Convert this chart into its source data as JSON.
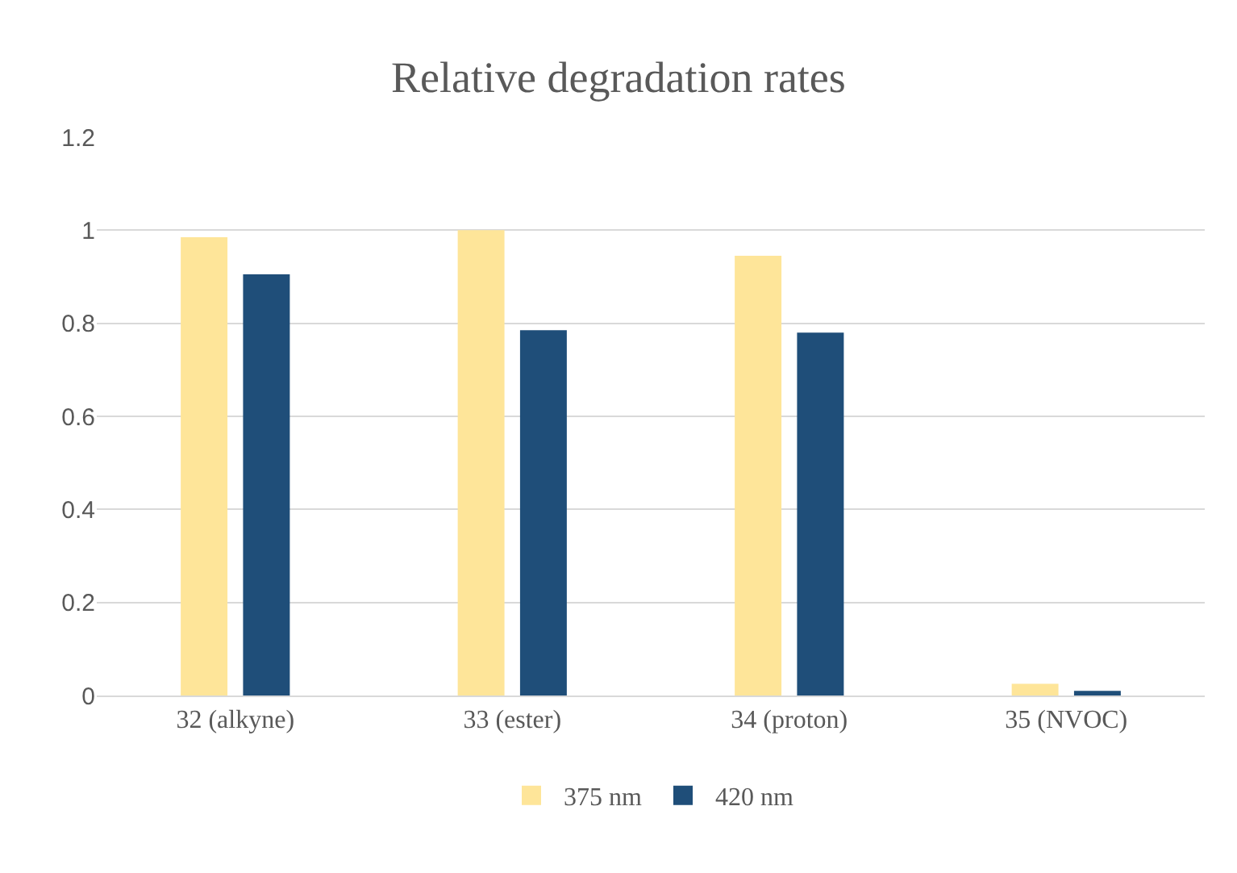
{
  "chart_data": {
    "type": "bar",
    "title": "Relative degradation rates",
    "categories": [
      "32 (alkyne)",
      "33 (ester)",
      "34 (proton)",
      "35 (NVOC)"
    ],
    "series": [
      {
        "name": "375 nm",
        "color": "#fee599",
        "values": [
          0.985,
          1.0,
          0.945,
          0.025
        ]
      },
      {
        "name": "420 nm",
        "color": "#1f4e79",
        "values": [
          0.905,
          0.785,
          0.78,
          0.01
        ]
      }
    ],
    "ylim": [
      0,
      1.2
    ],
    "yticks": [
      0,
      0.2,
      0.4,
      0.6,
      0.8,
      1,
      1.2
    ],
    "grid": "y",
    "legend": "bottom"
  }
}
